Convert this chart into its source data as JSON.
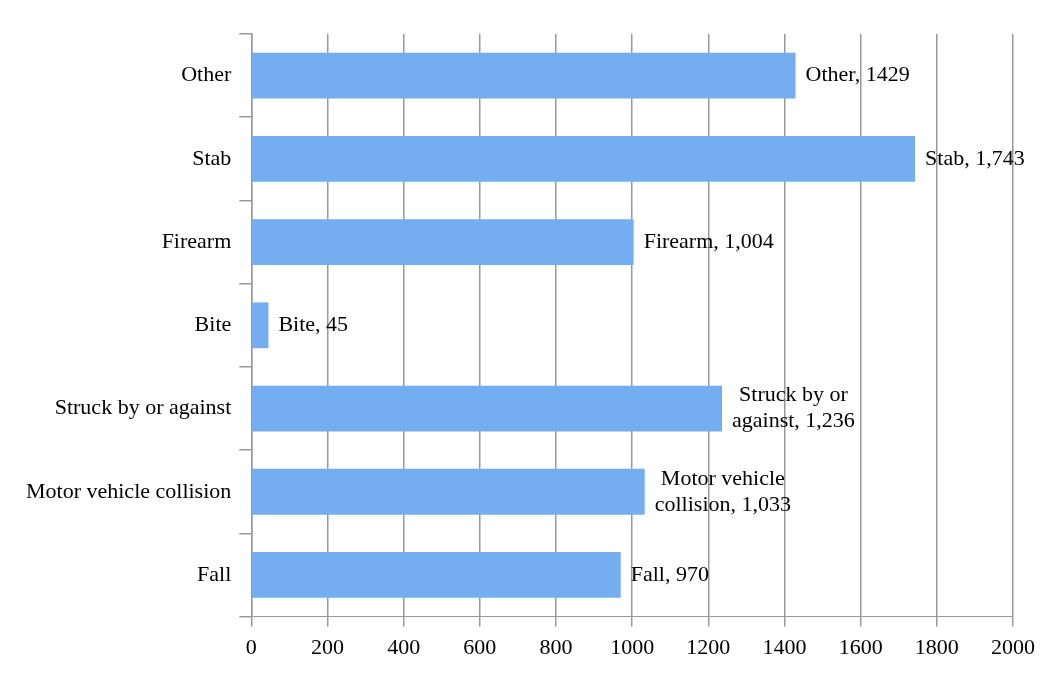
{
  "chart_data": {
    "type": "bar",
    "orientation": "horizontal",
    "categories": [
      "Other",
      "Stab",
      "Firearm",
      "Bite",
      "Struck by or against",
      "Motor vehicle collision",
      "Fall"
    ],
    "values": [
      1429,
      1743,
      1004,
      45,
      1236,
      1033,
      970
    ],
    "value_labels": [
      "Other, 1429",
      "Stab, 1,743",
      "Firearm, 1,004",
      "Bite, 45",
      "Struck by or against, 1,236",
      "Motor vehicle collision, 1,033",
      "Fall, 970"
    ],
    "color": "#74aef0",
    "xlim": [
      0,
      2000
    ],
    "xticks": [
      0,
      200,
      400,
      600,
      800,
      1000,
      1200,
      1400,
      1600,
      1800,
      2000
    ],
    "grid": "x",
    "legend": false
  }
}
